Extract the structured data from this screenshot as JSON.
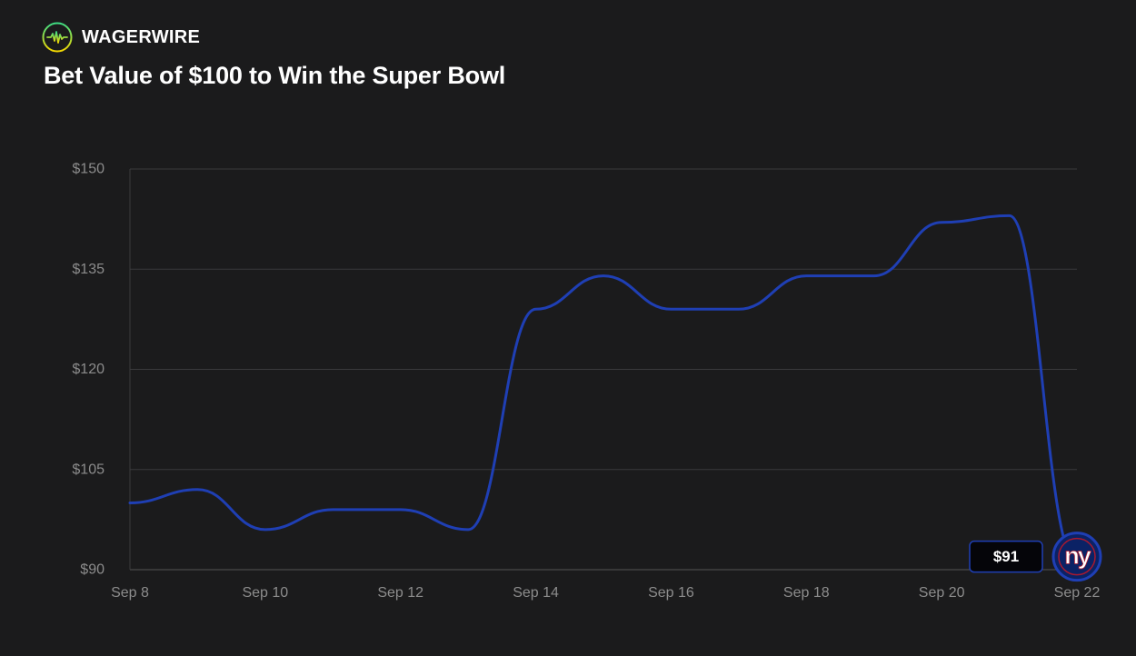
{
  "brand": {
    "name": "WAGERWIRE",
    "logo_icon": "pulse-wave-icon",
    "logo_colors": [
      "#3ddc84",
      "#f5d800"
    ]
  },
  "chart_data": {
    "type": "line",
    "title": "Bet Value of $100 to Win the Super Bowl",
    "xlabel": "",
    "ylabel": "",
    "x_ticks": [
      "Sep 8",
      "Sep 10",
      "Sep 12",
      "Sep 14",
      "Sep 16",
      "Sep 18",
      "Sep 20",
      "Sep 22"
    ],
    "y_ticks": [
      "$90",
      "$105",
      "$120",
      "$135",
      "$150"
    ],
    "y_tick_values": [
      90,
      105,
      120,
      135,
      150
    ],
    "ylim": [
      90,
      150
    ],
    "xlim": [
      "2024-09-08",
      "2024-09-22"
    ],
    "grid": true,
    "series": [
      {
        "color": "#1f3fb4",
        "points": [
          {
            "x": "2024-09-08",
            "y": 100
          },
          {
            "x": "2024-09-09",
            "y": 102
          },
          {
            "x": "2024-09-10",
            "y": 96
          },
          {
            "x": "2024-09-11",
            "y": 99
          },
          {
            "x": "2024-09-12",
            "y": 99
          },
          {
            "x": "2024-09-13",
            "y": 96
          },
          {
            "x": "2024-09-14",
            "y": 129
          },
          {
            "x": "2024-09-15",
            "y": 134
          },
          {
            "x": "2024-09-16",
            "y": 129
          },
          {
            "x": "2024-09-17",
            "y": 129
          },
          {
            "x": "2024-09-18",
            "y": 134
          },
          {
            "x": "2024-09-19",
            "y": 134
          },
          {
            "x": "2024-09-20",
            "y": 142
          },
          {
            "x": "2024-09-21",
            "y": 143
          },
          {
            "x": "2024-09-22",
            "y": 91
          }
        ]
      }
    ],
    "end_value_label": "$91",
    "end_marker": {
      "team_text": "ny",
      "team_icon": "new-york-giants-logo-icon",
      "colors": {
        "primary": "#0b2265",
        "accent": "#a71930",
        "text": "#ffffff"
      }
    }
  }
}
